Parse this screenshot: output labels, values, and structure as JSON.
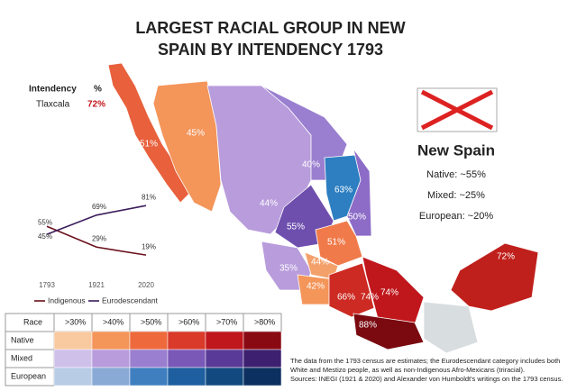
{
  "title": [
    "LARGEST RACIAL GROUP IN NEW",
    "SPAIN BY INTENDENCY 1793"
  ],
  "info": {
    "header": [
      "Intendency",
      "%"
    ],
    "row": [
      "Tlaxcala",
      "72%"
    ]
  },
  "map_labels": [
    "51%",
    "45%",
    "40%",
    "63%",
    "44%",
    "50%",
    "55%",
    "51%",
    "35%",
    "44%",
    "42%",
    "66%",
    "74%",
    "74%",
    "88%",
    "72%"
  ],
  "summary": {
    "title": "New Spain",
    "lines": [
      "Native: ~55%",
      "Mixed: ~25%",
      "European: ~20%"
    ]
  },
  "trend_chart": {
    "type": "line",
    "categories": [
      "1793",
      "1921",
      "2020"
    ],
    "series": [
      {
        "name": "Indigenous",
        "color": "#6b0f1a",
        "values": [
          55,
          29,
          19
        ],
        "value_labels": [
          "55%",
          "29%",
          "19%"
        ]
      },
      {
        "name": "Eurodescendant",
        "color": "#3b1d5a",
        "values": [
          45,
          69,
          81
        ],
        "value_labels": [
          "45%",
          "69%",
          "81%"
        ]
      }
    ]
  },
  "race_table": {
    "header": [
      "Race",
      ">30%",
      ">40%",
      ">50%",
      ">60%",
      ">70%",
      ">80%"
    ],
    "rows": [
      {
        "name": "Native",
        "colors": [
          "#f9c9a0",
          "#f4955a",
          "#ee6a3c",
          "#d93a2a",
          "#c0171c",
          "#8a0a14"
        ]
      },
      {
        "name": "Mixed",
        "colors": [
          "#cfc0ea",
          "#b89cdc",
          "#9a7fd0",
          "#7a58b8",
          "#5a3a98",
          "#3e2070"
        ]
      },
      {
        "name": "European",
        "colors": [
          "#b8cce6",
          "#8aaad6",
          "#3f7fc0",
          "#1e5fa0",
          "#124a80",
          "#0c3060"
        ]
      }
    ]
  },
  "note": [
    "The data from the 1793 census are estimates; the Eurodescendant category includes both",
    "White and Mestizo people, as well as non-Indigenous Afro-Mexicans (triracial).",
    "Sources: INEGI (1921 & 2020) and Alexander von Humboldt's writings on the 1793 census."
  ]
}
